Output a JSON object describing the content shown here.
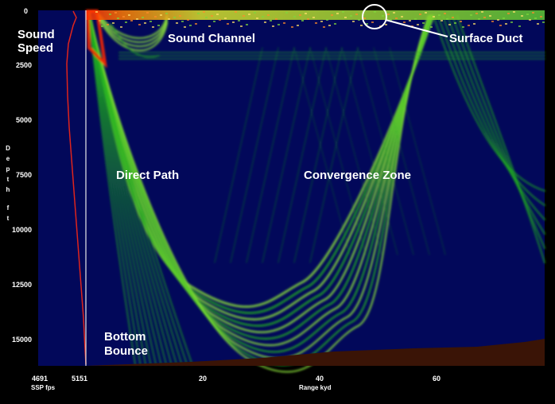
{
  "labels": {
    "sound_speed_line1": "Sound",
    "sound_speed_line2": "Speed",
    "sound_channel": "Sound Channel",
    "surface_duct": "Surface Duct",
    "direct_path": "Direct Path",
    "convergence_zone": "Convergence Zone",
    "bottom_bounce_line1": "Bottom",
    "bottom_bounce_line2": "Bounce"
  },
  "depth_axis": {
    "title_chars": [
      "D",
      "e",
      "p",
      "t",
      "h",
      "",
      "f",
      "t"
    ],
    "ticks": [
      "0",
      "2500",
      "5000",
      "7500",
      "10000",
      "12500",
      "15000"
    ]
  },
  "range_axis": {
    "title": "Range kyd",
    "ticks": [
      "20",
      "40",
      "60"
    ]
  },
  "ssp_axis": {
    "title": "SSP fps",
    "min_label": "4691",
    "max_label": "5151"
  },
  "colors": {
    "background": "#02085a",
    "ray_green": "#1fae1f",
    "ray_bright": "#8fe63a",
    "surface_hot": "#ff2a00",
    "ssp_line": "#e0241c",
    "seafloor": "#3a1406",
    "annotation_white": "#ffffff"
  }
}
